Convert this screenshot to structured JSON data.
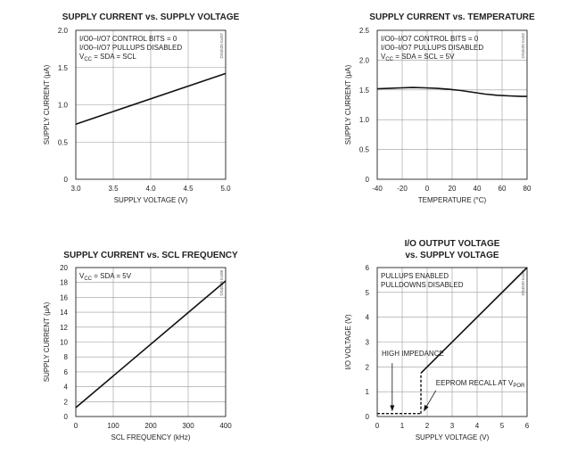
{
  "chart_data": [
    {
      "type": "line",
      "title": [
        "SUPPLY CURRENT vs. SUPPLY VOLTAGE"
      ],
      "xlabel": "SUPPLY VOLTAGE (V)",
      "ylabel": "SUPPLY CURRENT (μA)",
      "xlim": [
        3.0,
        5.0
      ],
      "ylim": [
        0,
        2.0
      ],
      "xticks": [
        "3.0",
        "3.5",
        "4.0",
        "4.5",
        "5.0"
      ],
      "yticks": [
        "0",
        "0.5",
        "1.0",
        "1.5",
        "2.0"
      ],
      "grid": true,
      "annotations": [
        {
          "parts": [
            {
              "t": "I/O0–I/O7 CONTROL BITS = 0"
            }
          ]
        },
        {
          "parts": [
            {
              "t": "I/O0–I/O7 PULLUPS DISABLED"
            }
          ]
        },
        {
          "parts": [
            {
              "t": "V"
            },
            {
              "t": "CC",
              "sub": true
            },
            {
              "t": " = SDA = SCL"
            }
          ]
        }
      ],
      "side_label": "DS4520 toc07",
      "series": [
        {
          "x": [
            3.0,
            5.0
          ],
          "y": [
            0.74,
            1.42
          ]
        }
      ]
    },
    {
      "type": "line",
      "title": [
        "SUPPLY CURRENT vs. TEMPERATURE"
      ],
      "xlabel": "TEMPERATURE (°C)",
      "ylabel": "SUPPLY CURRENT (μA)",
      "xlim": [
        -40,
        85
      ],
      "ylim": [
        0,
        2.5
      ],
      "xticks": [
        "-40",
        "-20",
        "0",
        "20",
        "40",
        "60",
        "80"
      ],
      "yticks": [
        "0",
        "0.5",
        "1.0",
        "1.5",
        "2.0",
        "2.5"
      ],
      "grid": true,
      "annotations": [
        {
          "parts": [
            {
              "t": "I/O0–I/O7 CONTROL BITS = 0"
            }
          ]
        },
        {
          "parts": [
            {
              "t": "I/O0–I/O7 PULLUPS DISABLED"
            }
          ]
        },
        {
          "parts": [
            {
              "t": "V"
            },
            {
              "t": "CC",
              "sub": true
            },
            {
              "t": " = SDA = SCL = 5V"
            }
          ]
        }
      ],
      "side_label": "DS4520 toc02",
      "series": [
        {
          "x": [
            -40,
            -30,
            -20,
            -10,
            0,
            10,
            20,
            30,
            40,
            50,
            60,
            70,
            80,
            85
          ],
          "y": [
            1.52,
            1.525,
            1.535,
            1.54,
            1.535,
            1.525,
            1.51,
            1.49,
            1.46,
            1.43,
            1.41,
            1.4,
            1.39,
            1.39
          ]
        }
      ]
    },
    {
      "type": "line",
      "title": [
        "SUPPLY CURRENT vs. SCL FREQUENCY"
      ],
      "xlabel": "SCL FREQUENCY (kHz)",
      "ylabel": "SUPPLY CURRENT (μA)",
      "xlim": [
        0,
        400
      ],
      "ylim": [
        0,
        20
      ],
      "xticks": [
        "0",
        "100",
        "200",
        "300",
        "400"
      ],
      "yticks": [
        "0",
        "2",
        "4",
        "6",
        "8",
        "10",
        "12",
        "14",
        "16",
        "18",
        "20"
      ],
      "grid": true,
      "annotations": [
        {
          "parts": [
            {
              "t": "V"
            },
            {
              "t": "CC",
              "sub": true
            },
            {
              "t": " = SDA = 5V"
            }
          ]
        }
      ],
      "side_label": "DS4520 toc08",
      "series": [
        {
          "x": [
            0,
            400
          ],
          "y": [
            1.2,
            18.2
          ]
        }
      ]
    },
    {
      "type": "line",
      "title": [
        "I/O OUTPUT VOLTAGE",
        "vs. SUPPLY VOLTAGE"
      ],
      "xlabel": "SUPPLY VOLTAGE (V)",
      "ylabel": "I/O VOLTAGE (V)",
      "xlim": [
        0,
        6
      ],
      "ylim": [
        0,
        6
      ],
      "xticks": [
        "0",
        "1",
        "2",
        "3",
        "4",
        "5",
        "6"
      ],
      "yticks": [
        "0",
        "1",
        "2",
        "3",
        "4",
        "5",
        "6"
      ],
      "grid": true,
      "annotations": [
        {
          "parts": [
            {
              "t": "PULLUPS ENABLED"
            }
          ]
        },
        {
          "parts": [
            {
              "t": "PULLDOWNS DISABLED"
            }
          ]
        }
      ],
      "callouts": [
        {
          "parts": [
            {
              "t": "HIGH IMPEDANCE"
            }
          ]
        },
        {
          "parts": [
            {
              "t": "EEPROM RECALL AT V"
            },
            {
              "t": "POR",
              "sub": true
            }
          ]
        }
      ],
      "side_label": "DS4520 toc04",
      "series": [
        {
          "style": "dashed",
          "x": [
            0,
            1.75
          ],
          "y": [
            0.12,
            0.12
          ]
        },
        {
          "style": "dashed",
          "x": [
            1.75,
            1.75
          ],
          "y": [
            0.12,
            1.75
          ]
        },
        {
          "style": "solid",
          "x": [
            1.75,
            6.0
          ],
          "y": [
            1.75,
            6.0
          ]
        }
      ]
    }
  ]
}
